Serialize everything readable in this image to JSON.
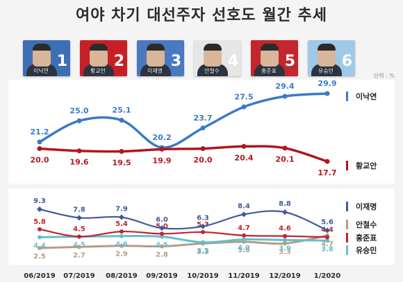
{
  "title": "여야 차기 대선주자 선호도 월간 추세",
  "unit": "단위 : %",
  "candidates": [
    {
      "name": "이낙연",
      "number": "1",
      "bg": "#3e6fb6"
    },
    {
      "name": "황교안",
      "number": "2",
      "bg": "#c62026"
    },
    {
      "name": "이재명",
      "number": "3",
      "bg": "#4b79c0"
    },
    {
      "name": "안철수",
      "number": "4",
      "bg": "#e6e6e6"
    },
    {
      "name": "홍준표",
      "number": "5",
      "bg": "#c3262c"
    },
    {
      "name": "유승민",
      "number": "6",
      "bg": "#9fc9e6"
    }
  ],
  "chart_data": [
    {
      "type": "line",
      "title": "",
      "categories": [
        "06/2019",
        "07/2019",
        "08/2019",
        "09/2019",
        "10/2019",
        "11/2019",
        "12/2019",
        "1/2020"
      ],
      "series": [
        {
          "name": "이낙연",
          "color": "#3a7ac6",
          "values": [
            21.2,
            25.0,
            25.1,
            20.2,
            23.7,
            27.5,
            29.4,
            29.9
          ]
        },
        {
          "name": "황교안",
          "color": "#b3151d",
          "values": [
            20.0,
            19.6,
            19.5,
            19.9,
            20.0,
            20.4,
            20.1,
            17.7
          ]
        }
      ],
      "ylim": [
        16,
        31
      ]
    },
    {
      "type": "line",
      "title": "",
      "categories": [
        "06/2019",
        "07/2019",
        "08/2019",
        "09/2019",
        "10/2019",
        "11/2019",
        "12/2019",
        "1/2020"
      ],
      "series": [
        {
          "name": "이재명",
          "color": "#3d5a98",
          "values": [
            9.3,
            7.8,
            7.9,
            6.0,
            6.3,
            8.4,
            8.8,
            5.6
          ]
        },
        {
          "name": "안철수",
          "color": "#b99a86",
          "values": [
            2.5,
            2.7,
            2.9,
            2.8,
            3.3,
            3.6,
            3.3,
            4.7
          ]
        },
        {
          "name": "홍준표",
          "color": "#c0242b",
          "values": [
            5.8,
            4.5,
            5.4,
            5.0,
            5.3,
            4.7,
            4.6,
            4.4
          ]
        },
        {
          "name": "유승민",
          "color": "#5fc0cf",
          "values": [
            4.4,
            4.5,
            4.6,
            4.5,
            3.5,
            4.0,
            3.9,
            3.8
          ]
        }
      ],
      "ylim": [
        1.5,
        10.5
      ]
    }
  ]
}
